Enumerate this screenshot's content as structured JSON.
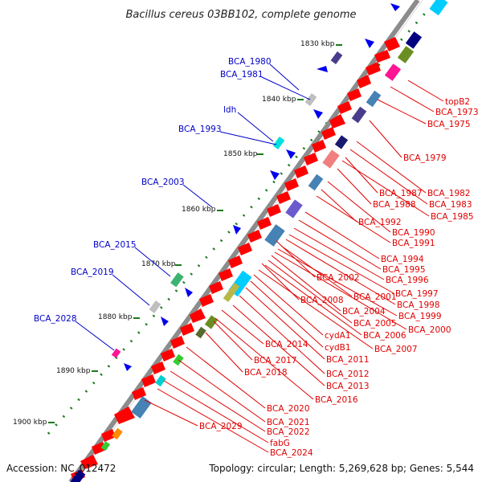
{
  "title": "Bacillus cereus 03BB102, complete genome",
  "footer": {
    "accession": "Accession: NC_012472",
    "info": "Topology: circular; Length: 5,269,628 bp; Genes: 5,544"
  },
  "colors": {
    "backbone": "#8c8c8c",
    "cds_arrow": "#ff0000",
    "minus_label": "#e00000",
    "plus_label": "#0000c8",
    "blue_arrow": "#0000ee",
    "gc_dots": "#1a7a1a"
  },
  "scale_marks": [
    "1830 kbp",
    "1840 kbp",
    "1850 kbp",
    "1860 kbp",
    "1870 kbp",
    "1880 kbp",
    "1890 kbp",
    "1900 kbp"
  ],
  "plus_strand_labels": [
    "BCA_1980",
    "BCA_1981",
    "ldh",
    "BCA_1993",
    "BCA_2003",
    "BCA_2015",
    "BCA_2019",
    "BCA_2028"
  ],
  "minus_strand_labels": [
    "topB2",
    "BCA_1973",
    "BCA_1975",
    "BCA_1979",
    "BCA_1982",
    "BCA_1987",
    "BCA_1983",
    "BCA_1988",
    "BCA_1985",
    "BCA_1992",
    "BCA_1990",
    "BCA_1991",
    "BCA_1994",
    "BCA_1995",
    "BCA_2002",
    "BCA_1996",
    "BCA_1997",
    "BCA_2001",
    "BCA_1998",
    "BCA_2008",
    "BCA_1999",
    "BCA_2004",
    "BCA_2005",
    "BCA_2000",
    "BCA_2006",
    "cydA1",
    "BCA_2007",
    "BCA_2014",
    "cydB1",
    "BCA_2011",
    "BCA_2017",
    "BCA_2018",
    "BCA_2012",
    "BCA_2013",
    "BCA_2016",
    "BCA_2020",
    "BCA_2021",
    "BCA_2029",
    "BCA_2022",
    "fabG",
    "BCA_2024"
  ]
}
